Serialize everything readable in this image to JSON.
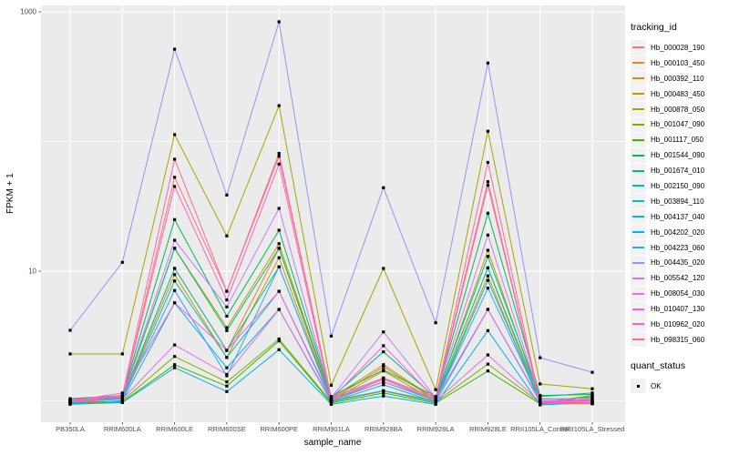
{
  "y_axis": {
    "label": "FPKM + 1",
    "ticks": [
      {
        "label": "1000",
        "value": 1000
      },
      {
        "label": "10",
        "value": 10
      }
    ]
  },
  "x_axis": {
    "label": "sample_name"
  },
  "legend": {
    "tracking_title": "tracking_id",
    "quant_title": "quant_status",
    "quant_items": [
      {
        "label": "OK"
      }
    ]
  },
  "colors": {
    "panel_bg": "#EBEBEB",
    "gridline": "#FFFFFF",
    "tick_mark": "#333333",
    "tick_label": "#4D4D4D",
    "point": "#000000",
    "legend_key_bg": "#F2F2F2"
  },
  "chart_data": {
    "type": "line",
    "title": "",
    "xlabel": "sample_name",
    "ylabel": "FPKM + 1",
    "y_scale": "log10",
    "ylim": [
      0.68,
      1120
    ],
    "y_major_breaks": [
      10,
      1000
    ],
    "y_minor_breaks": [
      1,
      100
    ],
    "grid": true,
    "legend_position": "right",
    "point_shape": "filled-square",
    "categories": [
      "PB350LA",
      "RRIM600LA",
      "RRIM600LE",
      "RRIM600SE",
      "RRIM600PE",
      "RRIM901LA",
      "RRIM928BA",
      "RRIM928LA",
      "RRIM928LE",
      "RRII105LA_Control",
      "RRII105LA_Stressed"
    ],
    "series": [
      {
        "name": "Hb_000028_190",
        "color": "#F8766D",
        "values": [
          1.0,
          1.08,
          53.0,
          7.0,
          81.0,
          1.05,
          1.5,
          1.05,
          49.0,
          0.97,
          0.95
        ]
      },
      {
        "name": "Hb_000103_450",
        "color": "#EA8331",
        "values": [
          0.98,
          1.05,
          10.5,
          2.45,
          15.0,
          1.02,
          1.83,
          1.02,
          10.6,
          0.96,
          0.96
        ]
      },
      {
        "name": "Hb_000392_110",
        "color": "#D89000",
        "values": [
          0.97,
          1.04,
          9.4,
          2.16,
          12.7,
          1.0,
          1.7,
          1.0,
          9.2,
          0.95,
          0.95
        ]
      },
      {
        "name": "Hb_000483_450",
        "color": "#C09B00",
        "values": [
          1.0,
          1.06,
          15.0,
          3.67,
          16.3,
          1.05,
          1.9,
          1.03,
          14.5,
          1.0,
          1.0
        ]
      },
      {
        "name": "Hb_000878_050",
        "color": "#A3A500",
        "values": [
          2.3,
          2.3,
          113.0,
          18.7,
          189.0,
          1.32,
          10.5,
          1.22,
          120.0,
          1.35,
          1.24
        ]
      },
      {
        "name": "Hb_001047_090",
        "color": "#7CAE00",
        "values": [
          0.96,
          1.0,
          2.2,
          1.4,
          3.0,
          0.98,
          1.19,
          0.98,
          1.92,
          0.97,
          1.1
        ]
      },
      {
        "name": "Hb_001117_050",
        "color": "#39B600",
        "values": [
          0.95,
          0.98,
          1.9,
          1.3,
          2.9,
          0.96,
          1.15,
          0.96,
          1.7,
          0.95,
          1.08
        ]
      },
      {
        "name": "Hb_001544_090",
        "color": "#00BB4E",
        "values": [
          1.04,
          1.1,
          25.0,
          4.5,
          20.7,
          1.08,
          1.73,
          1.08,
          28.0,
          1.1,
          1.12
        ]
      },
      {
        "name": "Hb_001674_010",
        "color": "#00BF7D",
        "values": [
          1.03,
          1.08,
          15.0,
          3.48,
          15.0,
          1.06,
          2.39,
          1.06,
          13.0,
          1.08,
          1.15
        ]
      },
      {
        "name": "Hb_002150_090",
        "color": "#00C1A3",
        "values": [
          1.0,
          1.05,
          10.5,
          2.45,
          10.8,
          1.02,
          1.47,
          1.02,
          10.6,
          1.03,
          1.05
        ]
      },
      {
        "name": "Hb_003894_110",
        "color": "#00BFC4",
        "values": [
          0.99,
          1.03,
          8.4,
          2.16,
          7.0,
          1.0,
          1.4,
          1.0,
          8.5,
          1.0,
          1.02
        ]
      },
      {
        "name": "Hb_004137_040",
        "color": "#00BAE0",
        "values": [
          0.97,
          1.0,
          5.7,
          1.8,
          5.07,
          0.98,
          1.33,
          0.98,
          5.07,
          0.98,
          1.0
        ]
      },
      {
        "name": "Hb_004202_020",
        "color": "#00B0F6",
        "values": [
          0.94,
          0.97,
          1.8,
          1.18,
          2.48,
          0.94,
          1.09,
          0.94,
          3.48,
          0.93,
          0.97
        ]
      },
      {
        "name": "Hb_004223_060",
        "color": "#35A2FF",
        "values": [
          1.0,
          1.04,
          7.1,
          1.56,
          10.8,
          1.0,
          1.2,
          1.0,
          7.4,
          1.0,
          1.0
        ]
      },
      {
        "name": "Hb_004435_020",
        "color": "#9590FF",
        "values": [
          3.5,
          11.7,
          515.0,
          38.6,
          838.0,
          3.16,
          44.0,
          4.0,
          403.0,
          2.15,
          1.66
        ]
      },
      {
        "name": "Hb_005542_120",
        "color": "#C77CFF",
        "values": [
          1.02,
          1.09,
          17.3,
          5.3,
          30.5,
          1.06,
          3.4,
          1.06,
          19.0,
          1.04,
          1.04
        ]
      },
      {
        "name": "Hb_008054_030",
        "color": "#E76BF3",
        "values": [
          0.98,
          1.03,
          2.7,
          1.6,
          5.07,
          1.0,
          1.47,
          1.0,
          2.26,
          0.98,
          0.98
        ]
      },
      {
        "name": "Hb_010407_130",
        "color": "#FA62DB",
        "values": [
          1.0,
          1.15,
          5.7,
          2.45,
          7.0,
          1.03,
          2.66,
          1.03,
          5.07,
          1.0,
          1.0
        ]
      },
      {
        "name": "Hb_010962_020",
        "color": "#FF62BC",
        "values": [
          0.99,
          1.08,
          45.0,
          6.0,
          67.0,
          1.02,
          1.4,
          1.02,
          46.0,
          0.97,
          0.96
        ]
      },
      {
        "name": "Hb_098315_060",
        "color": "#FF6A98",
        "values": [
          1.01,
          1.1,
          73.0,
          7.0,
          77.0,
          1.06,
          1.5,
          1.06,
          69.0,
          0.98,
          0.97
        ]
      }
    ]
  }
}
